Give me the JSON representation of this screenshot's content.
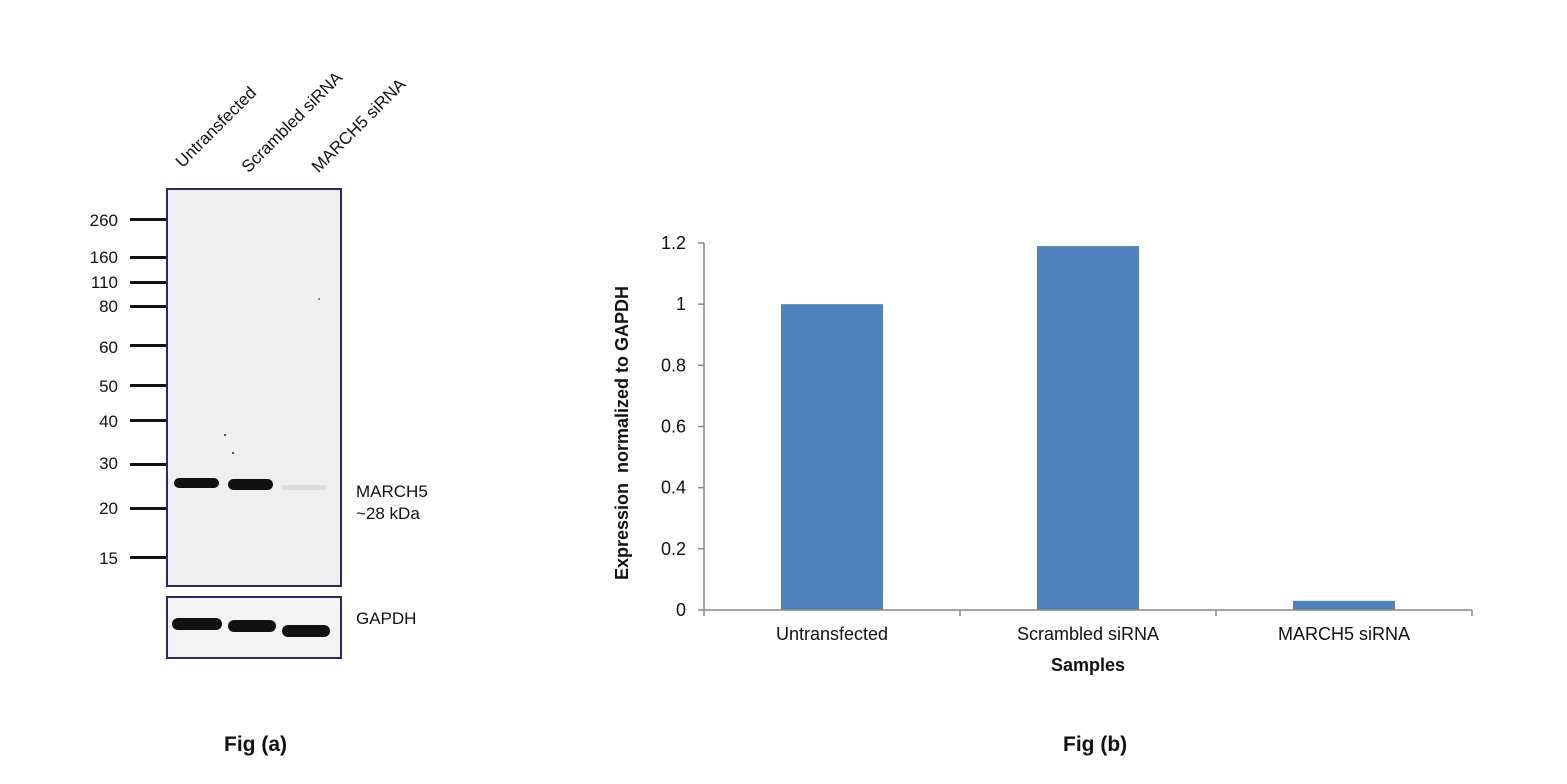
{
  "blot": {
    "lanes": [
      "Untransfected",
      "Scrambled siRNA",
      "MARCH5 siRNA"
    ],
    "mw_markers": [
      "260",
      "160",
      "110",
      "80",
      "60",
      "50",
      "40",
      "30",
      "20",
      "15"
    ],
    "target_label_line1": "MARCH5",
    "target_label_line2": "~28 kDa",
    "loading_control_label": "GAPDH",
    "caption": "Fig (a)"
  },
  "colors": {
    "bar": "#4f81bd",
    "axis": "#868686",
    "band": "#111111"
  },
  "chart_data": {
    "type": "bar",
    "categories": [
      "Untransfected",
      "Scrambled siRNA",
      "MARCH5 siRNA"
    ],
    "values": [
      1.0,
      1.19,
      0.03
    ],
    "title": "",
    "xlabel": "Samples",
    "ylabel": "Expression  normalized to GAPDH",
    "ylim": [
      0,
      1.2
    ],
    "yticks": [
      "0",
      "0.2",
      "0.4",
      "0.6",
      "0.8",
      "1",
      "1.2"
    ],
    "grid": false,
    "caption": "Fig (b)"
  }
}
